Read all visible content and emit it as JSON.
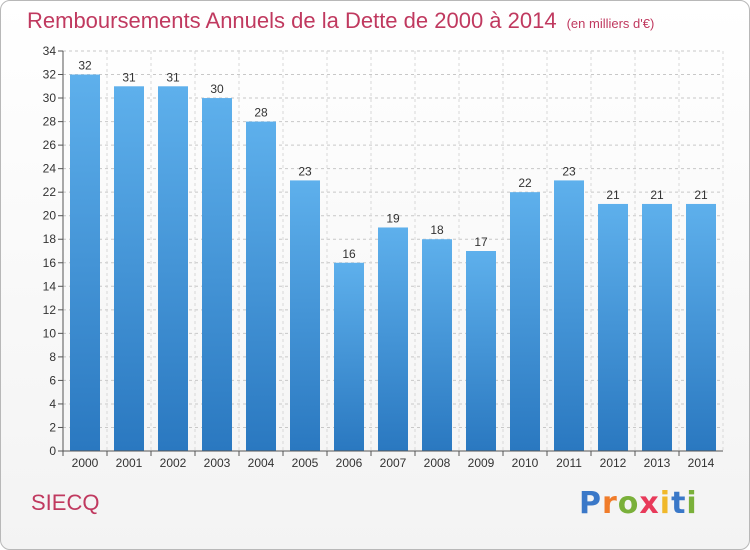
{
  "chart_data": {
    "type": "bar",
    "title": "Remboursements Annuels de la Dette de 2000 à 2014",
    "subtitle": "(en milliers d'€)",
    "categories": [
      "2000",
      "2001",
      "2002",
      "2003",
      "2004",
      "2005",
      "2006",
      "2007",
      "2008",
      "2009",
      "2010",
      "2011",
      "2012",
      "2013",
      "2014"
    ],
    "values": [
      32,
      31,
      31,
      30,
      28,
      23,
      16,
      19,
      18,
      17,
      22,
      23,
      21,
      21,
      21
    ],
    "data_labels": [
      "32",
      "31",
      "31",
      "30",
      "28",
      "23",
      "16",
      "19",
      "18",
      "17",
      "22",
      "23",
      "21",
      "21",
      "21"
    ],
    "ylim": [
      0,
      34
    ],
    "y_ticks": [
      "0",
      "2",
      "4",
      "6",
      "8",
      "10",
      "12",
      "14",
      "16",
      "18",
      "20",
      "22",
      "24",
      "26",
      "28",
      "30",
      "32",
      "34"
    ],
    "grid": true,
    "bar_color": "#3d8fd8",
    "xlabel": "",
    "ylabel": ""
  },
  "footer": {
    "commune": "SIECQ",
    "brand": [
      "P",
      "r",
      "o",
      "x",
      "i",
      "t",
      "i"
    ],
    "brand_colors": [
      "#3a78c8",
      "#f07c2a",
      "#7ab03a",
      "#e83a5a",
      "#f0b82a",
      "#3a78c8",
      "#7ab03a"
    ]
  }
}
